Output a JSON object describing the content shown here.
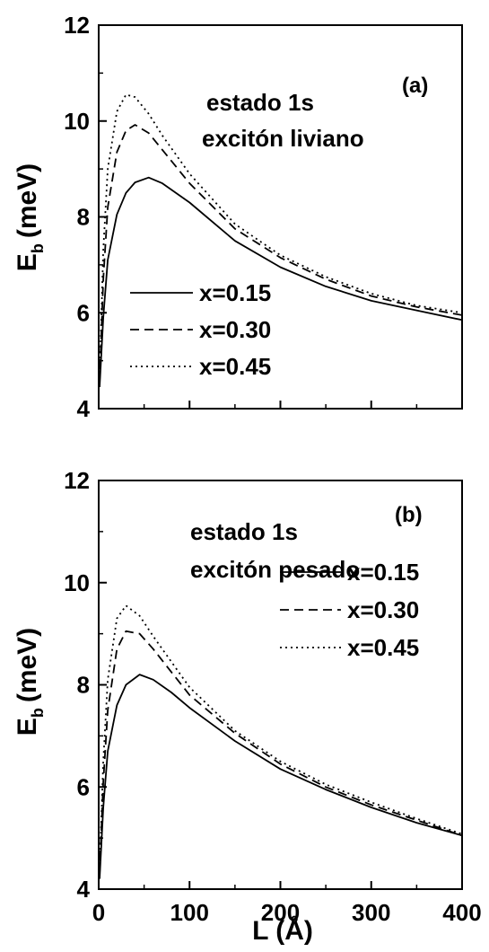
{
  "chart_data": [
    {
      "type": "line",
      "panel_label": "(a)",
      "annotation": [
        "estado 1s",
        "excitón liviano"
      ],
      "ylabel_main": "E",
      "ylabel_sub": "b",
      "ylabel_unit": "(meV)",
      "xlabel": "",
      "xlim": [
        0,
        400
      ],
      "ylim": [
        4,
        12
      ],
      "xticks": [
        "0",
        "100",
        "200",
        "300",
        "400"
      ],
      "yticks": [
        "4",
        "6",
        "8",
        "10",
        "12"
      ],
      "grid": false,
      "legend_placement": "lower-left",
      "series": [
        {
          "name": "x=0.15",
          "style": "solid",
          "x": [
            1,
            5,
            10,
            20,
            30,
            40,
            55,
            70,
            100,
            150,
            200,
            250,
            300,
            350,
            400
          ],
          "y": [
            4.45,
            5.9,
            7.1,
            8.05,
            8.5,
            8.72,
            8.82,
            8.7,
            8.3,
            7.5,
            6.95,
            6.55,
            6.25,
            6.05,
            5.85
          ]
        },
        {
          "name": "x=0.30",
          "style": "dashed",
          "x": [
            1,
            5,
            10,
            20,
            30,
            40,
            55,
            70,
            100,
            150,
            200,
            250,
            300,
            350,
            400
          ],
          "y": [
            4.55,
            6.7,
            8.2,
            9.35,
            9.8,
            9.92,
            9.75,
            9.4,
            8.7,
            7.75,
            7.15,
            6.7,
            6.35,
            6.12,
            5.95
          ]
        },
        {
          "name": "x=0.45",
          "style": "dotted",
          "x": [
            1,
            5,
            10,
            20,
            30,
            40,
            55,
            70,
            100,
            150,
            200,
            250,
            300,
            350,
            400
          ],
          "y": [
            4.6,
            7.3,
            9.0,
            10.2,
            10.55,
            10.5,
            10.15,
            9.7,
            8.9,
            7.85,
            7.2,
            6.75,
            6.4,
            6.15,
            6.0
          ]
        }
      ]
    },
    {
      "type": "line",
      "panel_label": "(b)",
      "annotation": [
        "estado 1s",
        "excitón pesado"
      ],
      "ylabel_main": "E",
      "ylabel_sub": "b",
      "ylabel_unit": "(meV)",
      "xlabel": "L (Å)",
      "xlim": [
        0,
        400
      ],
      "ylim": [
        4,
        12
      ],
      "xticks": [
        "0",
        "100",
        "200",
        "300",
        "400"
      ],
      "yticks": [
        "4",
        "6",
        "8",
        "10",
        "12"
      ],
      "grid": false,
      "legend_placement": "right",
      "series": [
        {
          "name": "x=0.15",
          "style": "solid",
          "x": [
            1,
            5,
            10,
            20,
            30,
            45,
            60,
            80,
            100,
            150,
            200,
            250,
            300,
            350,
            400
          ],
          "y": [
            4.2,
            5.6,
            6.7,
            7.6,
            8.0,
            8.2,
            8.1,
            7.85,
            7.55,
            6.9,
            6.35,
            5.95,
            5.6,
            5.3,
            5.05
          ]
        },
        {
          "name": "x=0.30",
          "style": "dashed",
          "x": [
            1,
            5,
            10,
            20,
            30,
            45,
            60,
            80,
            100,
            150,
            200,
            250,
            300,
            350,
            400
          ],
          "y": [
            4.3,
            6.1,
            7.5,
            8.7,
            9.05,
            9.0,
            8.7,
            8.25,
            7.8,
            7.05,
            6.45,
            6.0,
            5.65,
            5.35,
            5.05
          ]
        },
        {
          "name": "x=0.45",
          "style": "dotted",
          "x": [
            1,
            5,
            10,
            20,
            30,
            45,
            60,
            80,
            100,
            150,
            200,
            250,
            300,
            350,
            400
          ],
          "y": [
            4.35,
            6.5,
            8.1,
            9.3,
            9.55,
            9.35,
            8.95,
            8.45,
            7.95,
            7.1,
            6.5,
            6.05,
            5.7,
            5.38,
            5.08
          ]
        }
      ]
    }
  ]
}
